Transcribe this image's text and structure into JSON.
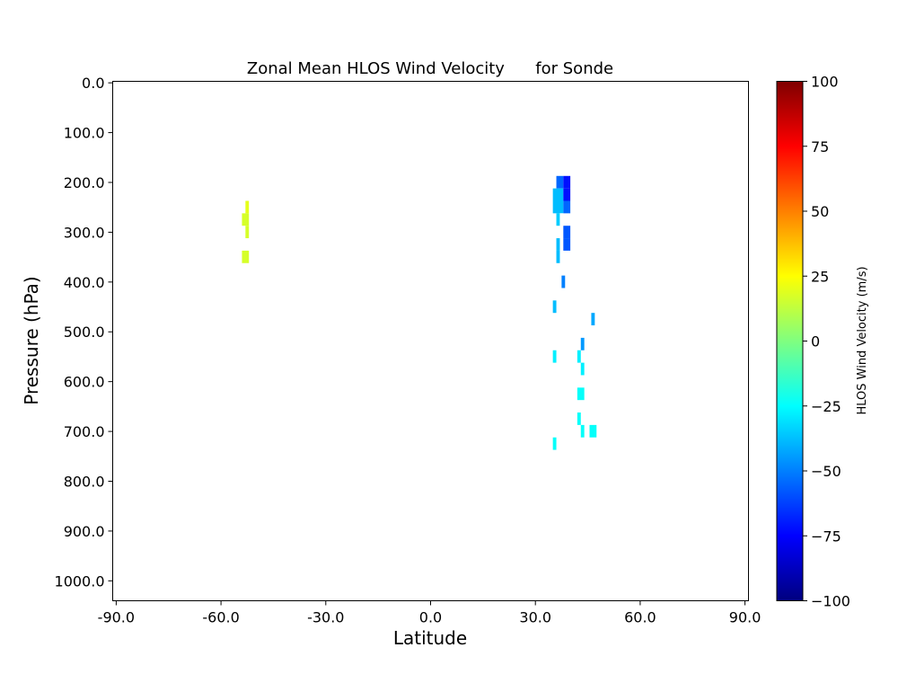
{
  "chart_data": {
    "type": "heatmap",
    "title": "Zonal Mean HLOS Wind Velocity      for Sonde",
    "xlabel": "Latitude",
    "ylabel": "Pressure (hPa)",
    "xlim": [
      -91,
      91
    ],
    "ylim": [
      1040,
      -3
    ],
    "y_inverted": true,
    "x_ticks": [
      -90,
      -60,
      -30,
      0,
      30,
      60,
      90
    ],
    "x_tick_labels": [
      "-90.0",
      "-60.0",
      "-30.0",
      "0.0",
      "30.0",
      "60.0",
      "90.0"
    ],
    "y_ticks": [
      0,
      100,
      200,
      300,
      400,
      500,
      600,
      700,
      800,
      900,
      1000
    ],
    "y_tick_labels": [
      "0.0",
      "100.0",
      "200.0",
      "300.0",
      "400.0",
      "500.0",
      "600.0",
      "700.0",
      "800.0",
      "900.0",
      "1000.0"
    ],
    "grid": false,
    "colormap": "jet",
    "colorbar": {
      "label": "HLOS Wind Velocity (m/s)",
      "vmin": -100,
      "vmax": 100,
      "ticks": [
        100,
        75,
        50,
        25,
        0,
        -25,
        -50,
        -75,
        -100
      ],
      "tick_labels": [
        "100",
        "75",
        "50",
        "25",
        "0",
        "−25",
        "−50",
        "−75",
        "−100"
      ]
    },
    "cells": [
      {
        "lat0": -53,
        "lat1": -52,
        "p0": 237,
        "p1": 262,
        "value": 20
      },
      {
        "lat0": -54,
        "lat1": -52,
        "p0": 262,
        "p1": 287,
        "value": 17
      },
      {
        "lat0": -53,
        "lat1": -52,
        "p0": 287,
        "p1": 312,
        "value": 17
      },
      {
        "lat0": -54,
        "lat1": -52,
        "p0": 337,
        "p1": 362,
        "value": 17
      },
      {
        "lat0": 36,
        "lat1": 38,
        "p0": 187,
        "p1": 212,
        "value": -55
      },
      {
        "lat0": 38,
        "lat1": 40,
        "p0": 187,
        "p1": 212,
        "value": -72
      },
      {
        "lat0": 35,
        "lat1": 38,
        "p0": 212,
        "p1": 237,
        "value": -38
      },
      {
        "lat0": 38,
        "lat1": 40,
        "p0": 212,
        "p1": 237,
        "value": -72
      },
      {
        "lat0": 35,
        "lat1": 38,
        "p0": 237,
        "p1": 262,
        "value": -38
      },
      {
        "lat0": 38,
        "lat1": 40,
        "p0": 237,
        "p1": 262,
        "value": -55
      },
      {
        "lat0": 36,
        "lat1": 37,
        "p0": 262,
        "p1": 287,
        "value": -35
      },
      {
        "lat0": 38,
        "lat1": 40,
        "p0": 287,
        "p1": 312,
        "value": -58
      },
      {
        "lat0": 38,
        "lat1": 40,
        "p0": 312,
        "p1": 337,
        "value": -58
      },
      {
        "lat0": 36,
        "lat1": 37,
        "p0": 312,
        "p1": 337,
        "value": -38
      },
      {
        "lat0": 36,
        "lat1": 37,
        "p0": 337,
        "p1": 362,
        "value": -38
      },
      {
        "lat0": 37.5,
        "lat1": 38.5,
        "p0": 387,
        "p1": 412,
        "value": -50
      },
      {
        "lat0": 35,
        "lat1": 36,
        "p0": 437,
        "p1": 462,
        "value": -38
      },
      {
        "lat0": 46,
        "lat1": 47,
        "p0": 462,
        "p1": 487,
        "value": -42
      },
      {
        "lat0": 43,
        "lat1": 44,
        "p0": 512,
        "p1": 537,
        "value": -45
      },
      {
        "lat0": 42,
        "lat1": 43,
        "p0": 537,
        "p1": 562,
        "value": -28
      },
      {
        "lat0": 35,
        "lat1": 36,
        "p0": 537,
        "p1": 562,
        "value": -28
      },
      {
        "lat0": 43,
        "lat1": 44,
        "p0": 562,
        "p1": 587,
        "value": -28
      },
      {
        "lat0": 42,
        "lat1": 44,
        "p0": 612,
        "p1": 637,
        "value": -24
      },
      {
        "lat0": 42,
        "lat1": 43,
        "p0": 662,
        "p1": 687,
        "value": -24
      },
      {
        "lat0": 43,
        "lat1": 44,
        "p0": 687,
        "p1": 712,
        "value": -24
      },
      {
        "lat0": 45.5,
        "lat1": 47.5,
        "p0": 687,
        "p1": 712,
        "value": -24
      },
      {
        "lat0": 35,
        "lat1": 36,
        "p0": 712,
        "p1": 737,
        "value": -24
      }
    ],
    "blank_cells": [
      {
        "lat0": 37,
        "lat1": 38,
        "p0": 262,
        "p1": 287
      }
    ]
  }
}
